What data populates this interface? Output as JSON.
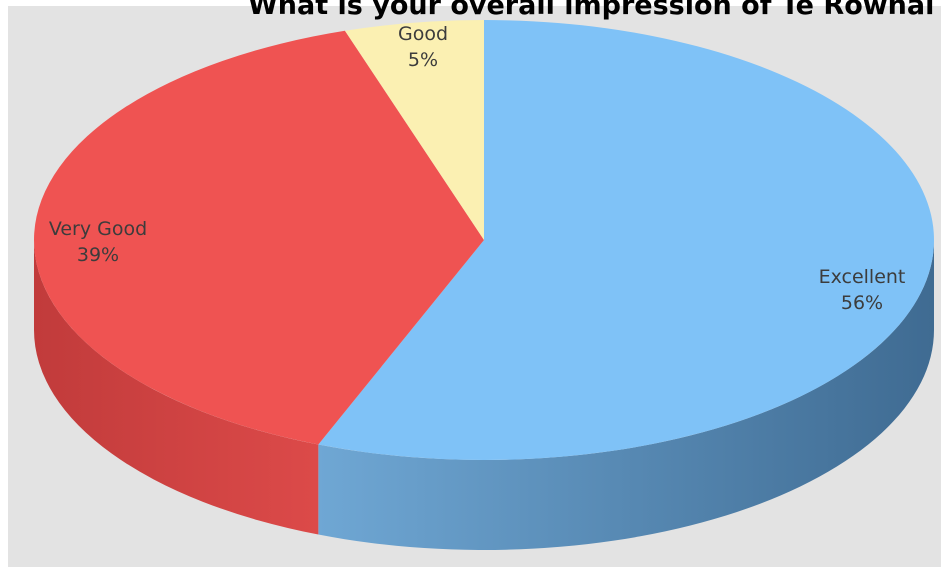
{
  "chart_data": {
    "type": "pie",
    "title": "What is your overall impression of Te Rowhai s",
    "style": "3d",
    "categories": [
      "Excellent",
      "Very Good",
      "Good"
    ],
    "values": [
      56,
      39,
      5
    ],
    "labels": [
      "56%",
      "39%",
      "5%"
    ],
    "colors": {
      "Excellent": "#7fc2f7",
      "Very Good": "#ef5352",
      "Good": "#fbf0b2"
    },
    "side_colors": {
      "Excellent": "#4b7ea8",
      "Very Good": "#c94040",
      "Good": "#d8cd90"
    },
    "label_color": "#3c3c3c",
    "background": "#e3e3e3"
  }
}
